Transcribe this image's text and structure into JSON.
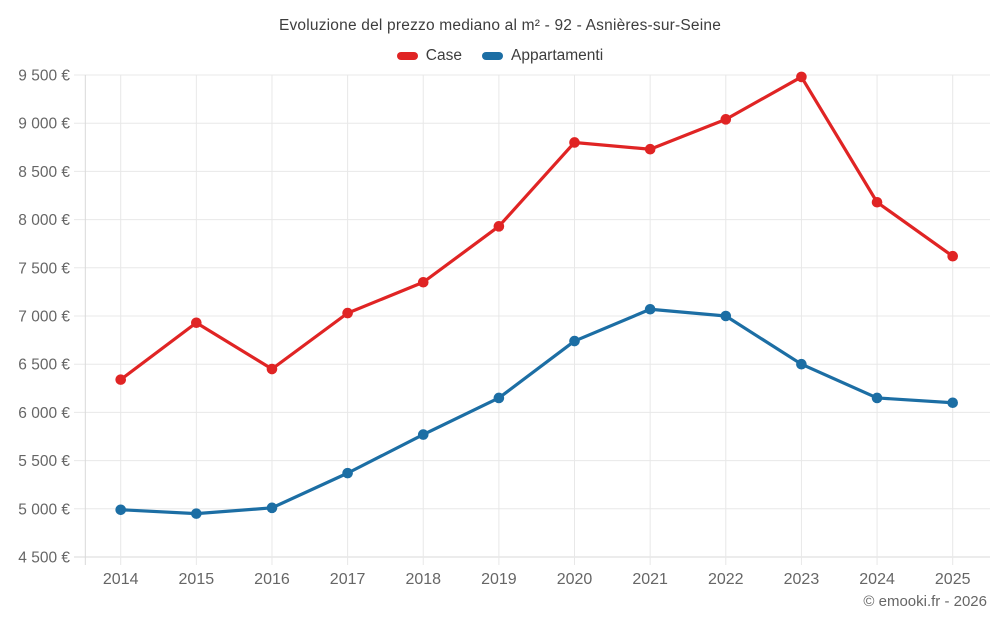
{
  "chart_data": {
    "type": "line",
    "title": "Evoluzione del prezzo mediano al m² - 92 - Asnières-sur-Seine",
    "categories": [
      "2014",
      "2015",
      "2016",
      "2017",
      "2018",
      "2019",
      "2020",
      "2021",
      "2022",
      "2023",
      "2024",
      "2025"
    ],
    "series": [
      {
        "name": "Case",
        "color": "#e02424",
        "values": [
          6340,
          6930,
          6450,
          7030,
          7350,
          7930,
          8800,
          8730,
          9040,
          9480,
          8180,
          7620
        ]
      },
      {
        "name": "Appartamenti",
        "color": "#1c6ea4",
        "values": [
          4990,
          4950,
          5010,
          5370,
          5770,
          6150,
          6740,
          7070,
          7000,
          6500,
          6150,
          6100
        ]
      }
    ],
    "ylim": [
      4500,
      9500
    ],
    "ytick_step": 500,
    "ytick_suffix": " €",
    "grid": true,
    "legend_position": "top",
    "xlabel": "",
    "ylabel": ""
  },
  "colors": {
    "grid": "#e8e8e8",
    "axis_border": "#d9d9d9",
    "tick_label": "#666666",
    "title_text": "#3d3d3d"
  },
  "footer": {
    "copyright": "© emooki.fr - 2026"
  }
}
